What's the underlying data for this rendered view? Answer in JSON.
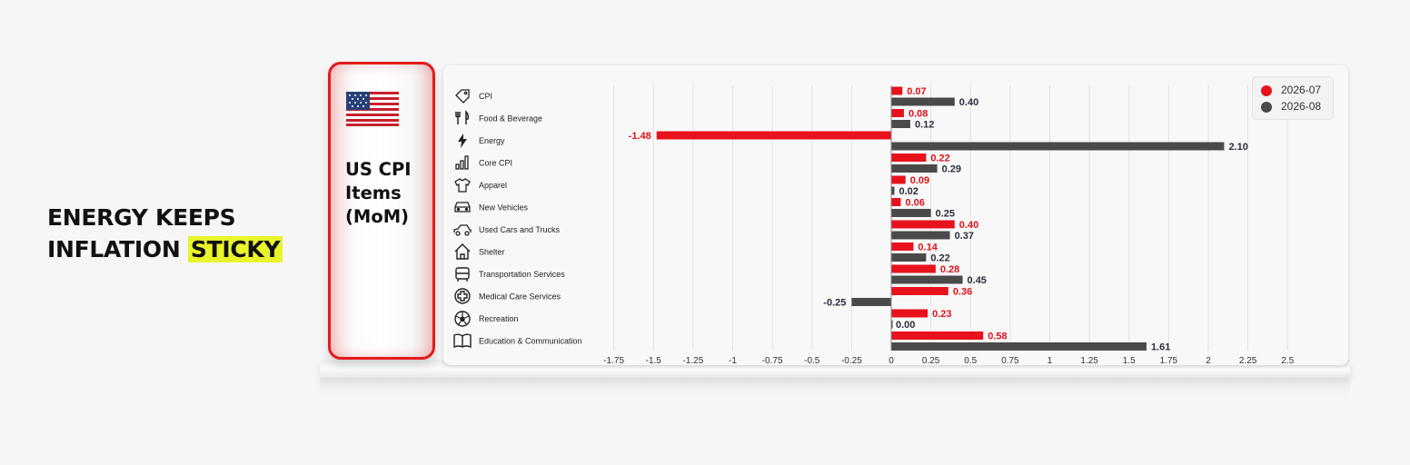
{
  "headline": {
    "line1": "ENERGY KEEPS",
    "line2_plain": "INFLATION",
    "line2_highlight": "STICKY"
  },
  "panel": {
    "title": "US CPI Items (MoM)",
    "flag_icon": "us-flag-icon"
  },
  "colors": {
    "series_1": "#e8121c",
    "series_2": "#4a4a4a",
    "highlight": "#e9f52b",
    "panel_border": "#e21b1b"
  },
  "legend": [
    {
      "label": "2026-07",
      "color": "#e8121c"
    },
    {
      "label": "2026-08",
      "color": "#4a4a4a"
    }
  ],
  "chart_data": {
    "type": "bar",
    "orientation": "horizontal",
    "categories": [
      "CPI",
      "Food & Beverage",
      "Energy",
      "Core CPI",
      "Apparel",
      "New Vehicles",
      "Used Cars and Trucks",
      "Shelter",
      "Transportation Services",
      "Medical Care Services",
      "Recreation",
      "Education & Communication"
    ],
    "category_icons": [
      "tag-icon",
      "fork-knife-icon",
      "lightning-icon",
      "bar-chart-icon",
      "shirt-icon",
      "car-icon",
      "car-side-icon",
      "house-icon",
      "bus-icon",
      "medical-cross-icon",
      "ball-icon",
      "book-icon"
    ],
    "series": [
      {
        "name": "2026-07",
        "values": [
          0.07,
          0.08,
          -1.48,
          0.22,
          0.09,
          0.06,
          0.4,
          0.14,
          0.28,
          0.36,
          0.23,
          0.58
        ]
      },
      {
        "name": "2026-08",
        "values": [
          0.4,
          0.12,
          2.1,
          0.29,
          0.02,
          0.25,
          0.37,
          0.22,
          0.45,
          -0.25,
          0.0,
          1.61
        ]
      }
    ],
    "x_ticks": [
      "-1.75",
      "-1.5",
      "-1.25",
      "-1",
      "-0.75",
      "-0.5",
      "-0.25",
      "0",
      "0.25",
      "0.5",
      "0.75",
      "1",
      "1.25",
      "1.5",
      "1.75",
      "2",
      "2.25",
      "2.5"
    ],
    "xlim": [
      -1.75,
      2.5
    ],
    "grid": "vertical",
    "legend_position": "top-right"
  }
}
